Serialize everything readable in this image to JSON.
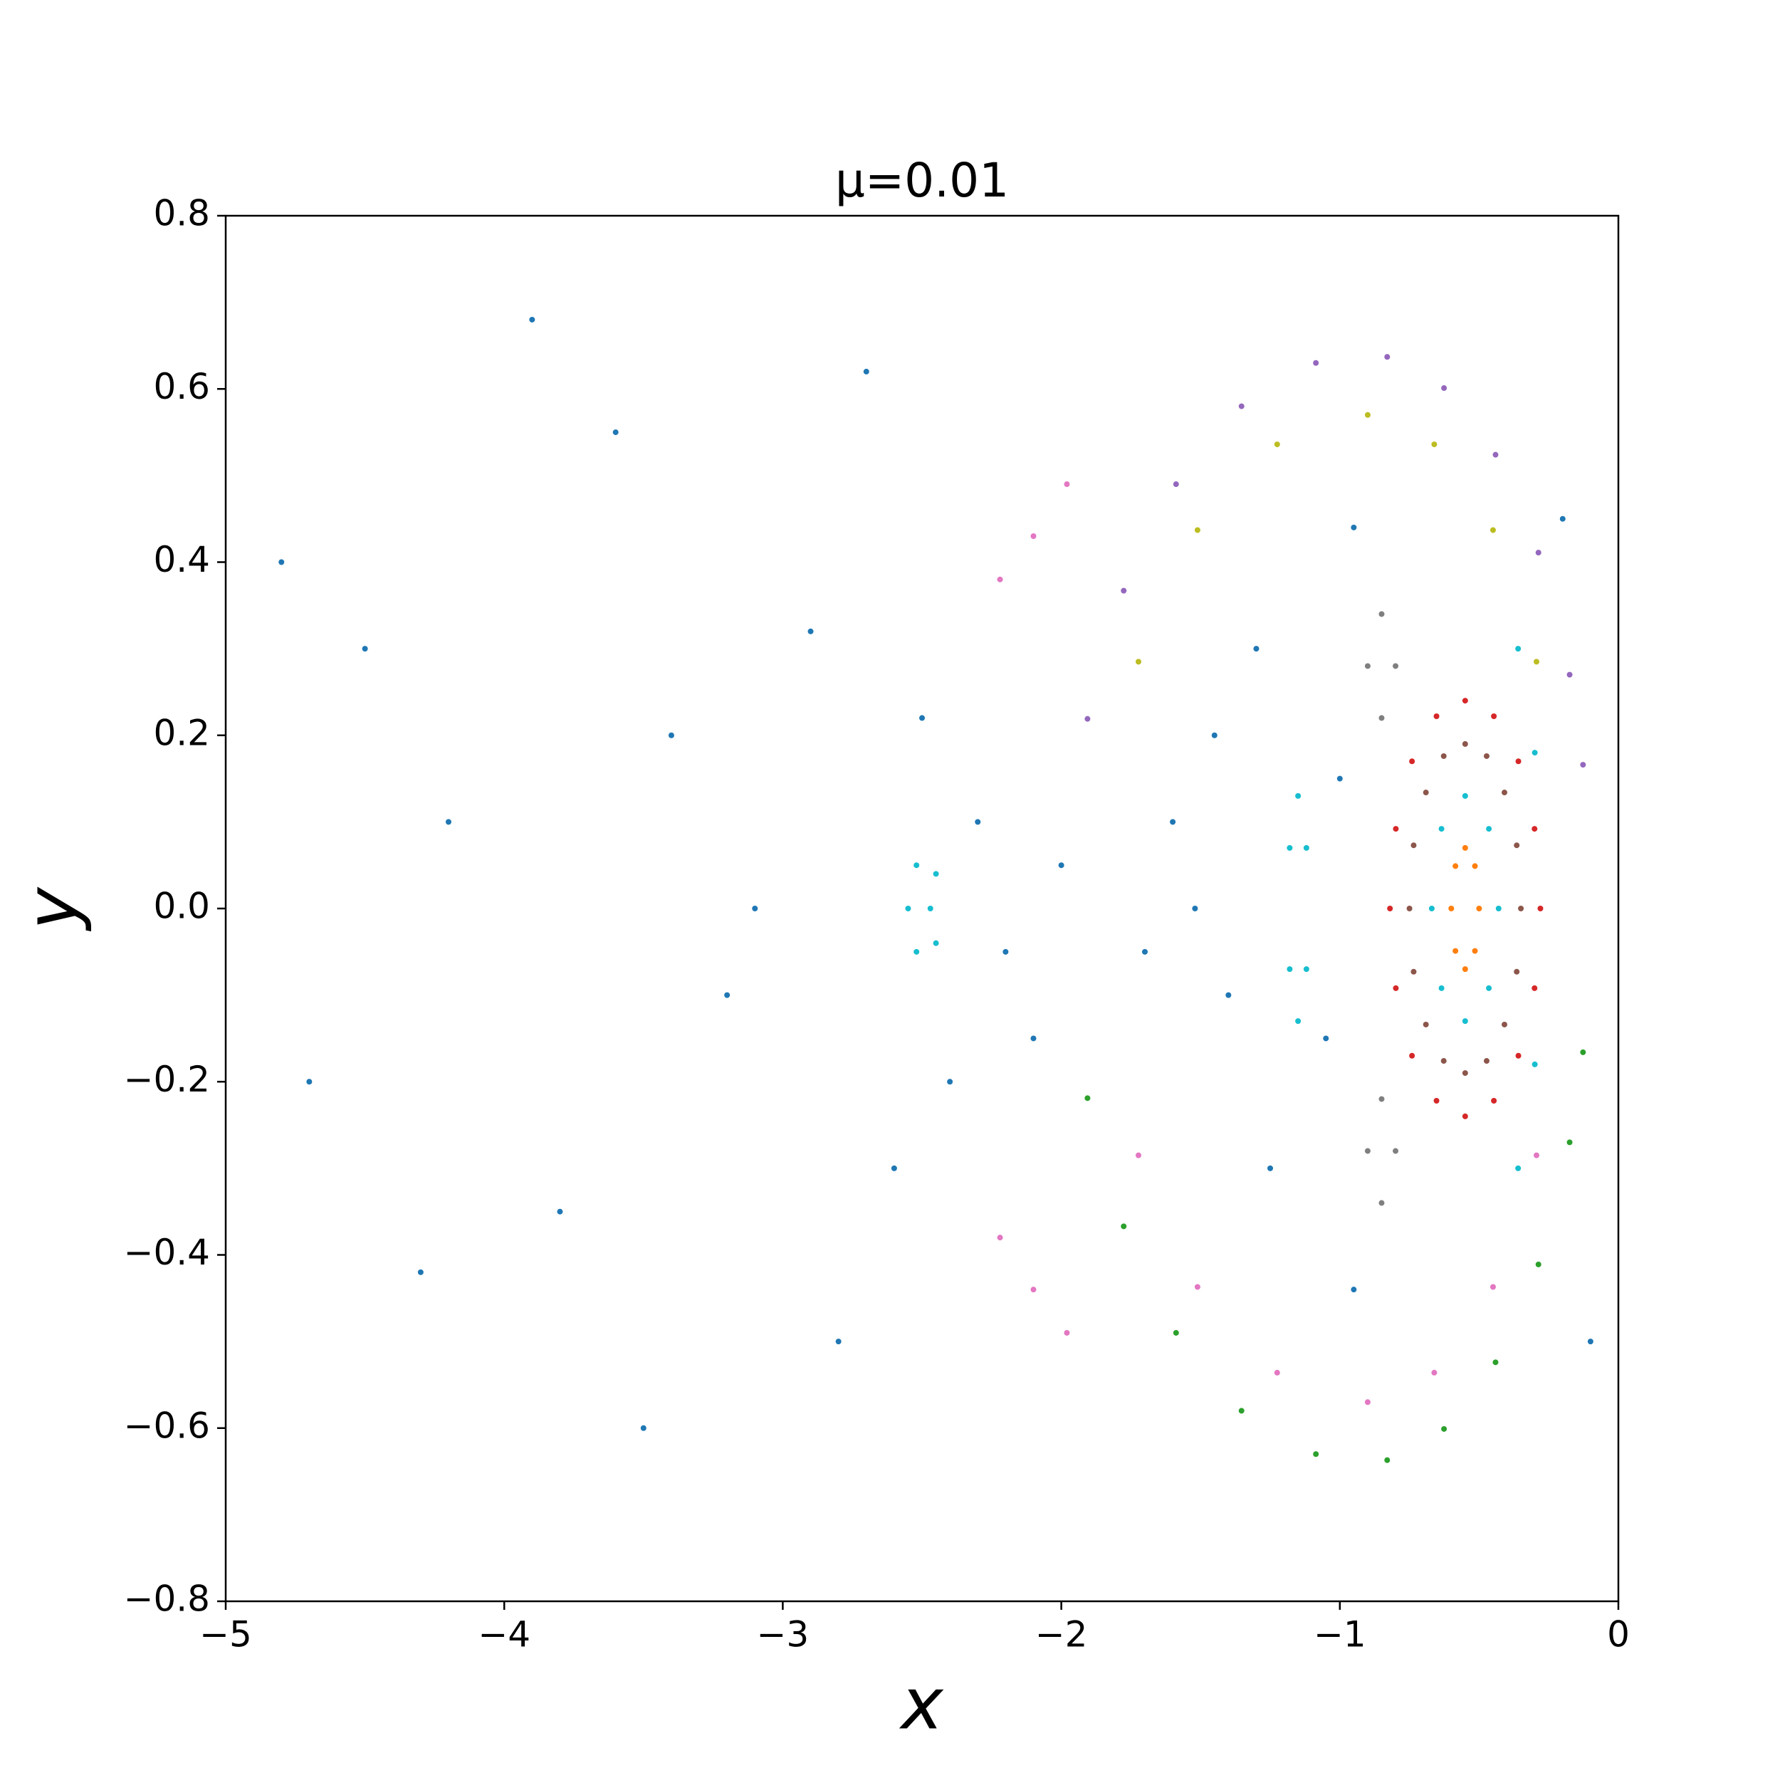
{
  "chart_data": {
    "type": "scatter",
    "title": "μ=0.01",
    "x_label": "x",
    "y_label": "y",
    "xlim": [
      -5,
      0
    ],
    "ylim": [
      -0.8,
      0.8
    ],
    "xticks": [
      {
        "value": -5,
        "label": "−5"
      },
      {
        "value": -4,
        "label": "−4"
      },
      {
        "value": -3,
        "label": "−3"
      },
      {
        "value": -2,
        "label": "−2"
      },
      {
        "value": -1,
        "label": "−1"
      },
      0
    ],
    "yticks": [
      {
        "value": -0.8,
        "label": "−0.8"
      },
      {
        "value": -0.6,
        "label": "−0.6"
      },
      {
        "value": -0.4,
        "label": "−0.4"
      },
      {
        "value": -0.2,
        "label": "−0.2"
      },
      {
        "value": 0,
        "label": "0.0"
      },
      0.2,
      0.4,
      0.6,
      0.8
    ],
    "grid": false,
    "series": [
      {
        "color": "#d62728",
        "x": [
          -0.28,
          -0.301,
          -0.359,
          -0.447,
          -0.55,
          -0.653,
          -0.741,
          -0.799,
          -0.82,
          -0.799,
          -0.741,
          -0.653,
          -0.55,
          -0.447,
          -0.359,
          -0.301
        ],
        "y": [
          0,
          0.092,
          0.17,
          0.222,
          0.24,
          0.222,
          0.17,
          0.092,
          0,
          -0.092,
          -0.17,
          -0.222,
          -0.24,
          -0.222,
          -0.17,
          -0.092
        ]
      },
      {
        "color": "#8c564b",
        "x": [
          -0.35,
          -0.365,
          -0.409,
          -0.473,
          -0.55,
          -0.627,
          -0.691,
          -0.735,
          -0.75,
          -0.735,
          -0.691,
          -0.627,
          -0.55,
          -0.473,
          -0.409,
          -0.365
        ],
        "y": [
          0,
          0.073,
          0.134,
          0.176,
          0.19,
          0.176,
          0.134,
          0.073,
          0,
          -0.073,
          -0.134,
          -0.176,
          -0.19,
          -0.176,
          -0.134,
          -0.073
        ]
      },
      {
        "color": "#17becf",
        "x": [
          -0.43,
          -0.465,
          -0.55,
          -0.635,
          -0.67,
          -0.635,
          -0.55,
          -0.465
        ],
        "y": [
          0,
          0.092,
          0.13,
          0.092,
          0,
          -0.092,
          -0.13,
          -0.092
        ]
      },
      {
        "color": "#ff7f0e",
        "x": [
          -0.5,
          -0.515,
          -0.55,
          -0.585,
          -0.6,
          -0.585,
          -0.55,
          -0.515
        ],
        "y": [
          0,
          0.049,
          0.07,
          0.049,
          0,
          -0.049,
          -0.07,
          -0.049
        ]
      },
      {
        "color": "#9467bd",
        "x": [
          -1.906,
          -1.776,
          -1.588,
          -1.353,
          -1.086,
          -0.83,
          -0.626,
          -0.441,
          -0.287,
          -0.175,
          -0.127
        ],
        "y": [
          0.219,
          0.367,
          0.49,
          0.58,
          0.63,
          0.637,
          0.601,
          0.524,
          0.411,
          0.27,
          0.166
        ]
      },
      {
        "color": "#2ca02c",
        "x": [
          -1.906,
          -1.776,
          -1.588,
          -1.353,
          -1.086,
          -0.83,
          -0.626,
          -0.441,
          -0.287,
          -0.175,
          -0.127
        ],
        "y": [
          -0.219,
          -0.367,
          -0.49,
          -0.58,
          -0.63,
          -0.637,
          -0.601,
          -0.524,
          -0.411,
          -0.27,
          -0.166
        ]
      },
      {
        "color": "#bcbd22",
        "x": [
          -1.723,
          -1.511,
          -1.225,
          -0.9,
          -0.661,
          -0.45,
          -0.294
        ],
        "y": [
          0.285,
          0.437,
          0.536,
          0.57,
          0.536,
          0.437,
          0.285
        ]
      },
      {
        "color": "#e377c2",
        "x": [
          -1.723,
          -1.511,
          -1.225,
          -0.9,
          -0.661,
          -0.45,
          -0.294
        ],
        "y": [
          -0.285,
          -0.437,
          -0.536,
          -0.57,
          -0.536,
          -0.437,
          -0.285
        ]
      },
      {
        "color": "#17becf",
        "x": [
          -2.45,
          -2.52,
          -2.55,
          -2.52,
          -2.45,
          -2.47,
          -1.15,
          -1.12,
          -1.12,
          -1.15,
          -1.18,
          -1.18,
          -0.36,
          -0.3,
          -0.36,
          -0.3
        ],
        "y": [
          0.04,
          0.05,
          0,
          -0.05,
          -0.04,
          0,
          0.13,
          0.07,
          -0.07,
          -0.13,
          -0.07,
          0.07,
          0.3,
          0.18,
          -0.3,
          -0.18
        ]
      },
      {
        "color": "#7f7f7f",
        "x": [
          -0.85,
          -0.8,
          -0.85,
          -0.9,
          -0.85,
          -0.8,
          -0.85,
          -0.9
        ],
        "y": [
          0.34,
          0.28,
          0.22,
          0.28,
          -0.34,
          -0.28,
          -0.22,
          -0.28
        ]
      },
      {
        "color": "#e377c2",
        "x": [
          -2.22,
          -2.1,
          -1.98,
          -2.22,
          -2.1,
          -1.98
        ],
        "y": [
          0.38,
          0.43,
          0.49,
          -0.38,
          -0.44,
          -0.49
        ]
      },
      {
        "color": "#1f77b4",
        "x": [
          -4.8,
          -4.5,
          -4.2,
          -3.9,
          -3.6,
          -3.4,
          -3.1,
          -2.9,
          -2.7,
          -2.5,
          -2.3,
          -2.2,
          -2.0,
          -1.6,
          -1.4,
          -1.3,
          -1.0,
          -0.95,
          -4.7,
          -4.3,
          -3.8,
          -3.5,
          -3.2,
          -2.8,
          -2.6,
          -2.4,
          -2.1,
          -1.7,
          -1.45,
          -1.25,
          -1.05,
          -0.95,
          -1.52,
          -0.2,
          -0.1
        ],
        "y": [
          0.4,
          0.3,
          0.1,
          0.68,
          0.55,
          0.2,
          0.0,
          0.32,
          0.62,
          0.22,
          0.1,
          -0.05,
          0.05,
          0.1,
          -0.1,
          0.3,
          0.15,
          0.44,
          -0.2,
          -0.42,
          -0.35,
          -0.6,
          -0.1,
          -0.5,
          -0.3,
          -0.2,
          -0.15,
          -0.05,
          0.2,
          -0.3,
          -0.15,
          -0.44,
          0,
          0.45,
          -0.5
        ]
      }
    ]
  }
}
